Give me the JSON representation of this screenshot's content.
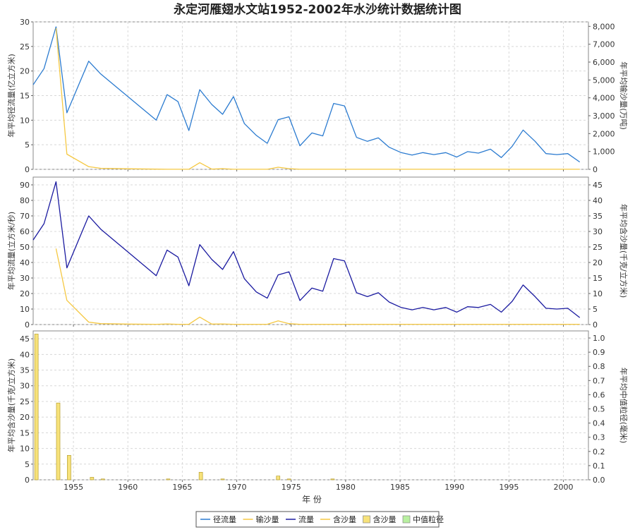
{
  "chart_data": {
    "type": "line",
    "title": "永定河雁翅水文站1952-2002年水沙统计数据统计图",
    "xlabel": "年 份",
    "xlim": [
      1951.3,
      2002.3
    ],
    "x_ticks": [
      1955,
      1960,
      1965,
      1970,
      1975,
      1980,
      1985,
      1990,
      1995,
      2000
    ],
    "colors": {
      "runoff": "#2b7bd0",
      "sediment_load": "#f5c842",
      "flow": "#1a1aa0",
      "concentration": "#f5c842",
      "bar_fill": "#f7e27a",
      "bar_stroke": "#b8a030",
      "median": "#b8f0a0"
    },
    "panels": [
      {
        "ylabel_left": "年平均径流量(亿立方米)",
        "ylabel_right": "年平均输沙量(万吨)",
        "ylim_left": [
          0,
          30
        ],
        "ylim_right": [
          0,
          8250
        ],
        "yticks_left": [
          "0",
          "5",
          "10",
          "15",
          "20",
          "25",
          "30"
        ],
        "yticks_right": [
          "0",
          "1,000",
          "2,000",
          "3,000",
          "4,000",
          "5,000",
          "6,000",
          "7,000",
          "8,000"
        ],
        "series": [
          {
            "name": "径流量",
            "axis": "left",
            "x": [
              1951.3,
              1952.3,
              1953.4,
              1954.4,
              1956.4,
              1957.5,
              1962.6,
              1963.6,
              1964.6,
              1965.6,
              1966.6,
              1967.7,
              1968.7,
              1969.7,
              1970.7,
              1971.8,
              1972.8,
              1973.8,
              1974.8,
              1975.8,
              1976.9,
              1977.9,
              1978.9,
              1979.9,
              1981.0,
              1982.0,
              1983.0,
              1984.0,
              1985.1,
              1986.1,
              1987.1,
              1988.1,
              1989.2,
              1990.2,
              1991.2,
              1992.2,
              1993.3,
              1994.3,
              1995.3,
              1996.3,
              1997.4,
              1998.4,
              1999.4,
              2000.4,
              2001.5
            ],
            "y": [
              17.2,
              20.5,
              29.0,
              11.5,
              22.0,
              19.4,
              10.0,
              15.2,
              13.8,
              7.9,
              16.2,
              13.2,
              11.2,
              14.8,
              9.3,
              6.9,
              5.3,
              10.1,
              10.7,
              4.8,
              7.4,
              6.8,
              13.4,
              12.9,
              6.5,
              5.7,
              6.4,
              4.5,
              3.4,
              2.9,
              3.4,
              3.0,
              3.4,
              2.5,
              3.6,
              3.3,
              4.1,
              2.4,
              4.7,
              8.0,
              5.7,
              3.2,
              3.0,
              3.2,
              1.5
            ]
          },
          {
            "name": "输沙量",
            "axis": "right",
            "x": [
              1953.4,
              1954.4,
              1956.4,
              1957.5,
              1960.0,
              1962.6,
              1963.6,
              1964.6,
              1965.6,
              1966.6,
              1967.7,
              1968.7,
              1969.7,
              1970.7,
              1971.8,
              1972.8,
              1973.8,
              1974.8,
              1975.8,
              1976.9,
              1980.0,
              1985.1,
              1990.2,
              1995.3,
              2001.5
            ],
            "y": [
              7900,
              850,
              150,
              60,
              30,
              10,
              5,
              5,
              5,
              370,
              10,
              40,
              5,
              5,
              5,
              5,
              120,
              40,
              5,
              5,
              5,
              5,
              5,
              5,
              5
            ]
          }
        ]
      },
      {
        "ylabel_left": "年平均流量(立方米/秒)",
        "ylabel_right": "年平均含沙量(千克/立方米)",
        "ylim_left": [
          0,
          95
        ],
        "ylim_right": [
          0,
          47.5
        ],
        "yticks_left": [
          "0",
          "10",
          "20",
          "30",
          "40",
          "50",
          "60",
          "70",
          "80",
          "90"
        ],
        "yticks_right": [
          "0",
          "5",
          "10",
          "15",
          "20",
          "25",
          "30",
          "35",
          "40",
          "45"
        ],
        "series": [
          {
            "name": "流量",
            "axis": "left",
            "x": [
              1951.3,
              1952.3,
              1953.4,
              1954.4,
              1956.4,
              1957.5,
              1962.6,
              1963.6,
              1964.6,
              1965.6,
              1966.6,
              1967.7,
              1968.7,
              1969.7,
              1970.7,
              1971.8,
              1972.8,
              1973.8,
              1974.8,
              1975.8,
              1976.9,
              1977.9,
              1978.9,
              1979.9,
              1981.0,
              1982.0,
              1983.0,
              1984.0,
              1985.1,
              1986.1,
              1987.1,
              1988.1,
              1989.2,
              1990.2,
              1991.2,
              1992.2,
              1993.3,
              1994.3,
              1995.3,
              1996.3,
              1997.4,
              1998.4,
              1999.4,
              2000.4,
              2001.5
            ],
            "y": [
              54.5,
              65.0,
              92.0,
              36.5,
              70.0,
              61.5,
              31.5,
              48.0,
              43.5,
              25.0,
              51.5,
              42.0,
              35.5,
              47.0,
              29.5,
              21.0,
              17.0,
              32.0,
              34.0,
              15.5,
              23.5,
              21.5,
              42.5,
              41.0,
              20.5,
              18.0,
              20.5,
              14.5,
              11.0,
              9.5,
              11.0,
              9.5,
              11.0,
              8.0,
              11.5,
              11.0,
              13.0,
              8.0,
              15.0,
              25.5,
              18.0,
              10.5,
              10.0,
              10.5,
              4.5
            ]
          },
          {
            "name": "含沙量",
            "axis": "right",
            "x": [
              1953.4,
              1954.4,
              1956.4,
              1957.5,
              1960.0,
              1962.6,
              1963.6,
              1964.6,
              1965.6,
              1966.6,
              1967.7,
              1968.7,
              1969.7,
              1970.7,
              1971.8,
              1972.8,
              1973.8,
              1974.8,
              1975.8,
              1976.9,
              1980.0,
              1985.1,
              1990.2,
              1995.3,
              2001.5
            ],
            "y": [
              24.5,
              7.8,
              0.8,
              0.3,
              0.15,
              0.1,
              0.2,
              0.1,
              0.1,
              2.4,
              0.15,
              0.2,
              0.1,
              0.1,
              0.1,
              0.1,
              1.2,
              0.3,
              0.1,
              0.1,
              0.1,
              0.1,
              0.1,
              0.1,
              0.1
            ]
          }
        ]
      },
      {
        "ylabel_left": "年平均含沙量(千克/立方米)",
        "ylabel_right": "年平均中值粒径(毫米)",
        "ylim_left": [
          0,
          47.5
        ],
        "ylim_right": [
          0,
          1.05
        ],
        "yticks_left": [
          "0",
          "5",
          "10",
          "15",
          "20",
          "25",
          "30",
          "35",
          "40",
          "45"
        ],
        "yticks_right": [
          "0.0",
          "0.1",
          "0.2",
          "0.3",
          "0.4",
          "0.5",
          "0.6",
          "0.7",
          "0.8",
          "0.9",
          "1.0"
        ],
        "bars": {
          "name": "含沙量",
          "x": [
            1951.6,
            1953.6,
            1954.6,
            1956.7,
            1957.7,
            1963.7,
            1966.7,
            1968.7,
            1973.8,
            1974.8,
            1978.8
          ],
          "y": [
            46.5,
            24.5,
            7.8,
            0.8,
            0.25,
            0.15,
            2.4,
            0.15,
            1.2,
            0.25,
            0.1
          ]
        }
      }
    ],
    "legend": {
      "placement": "bottom-center",
      "entries": [
        {
          "label": "径流量",
          "type": "line",
          "color": "#2b7bd0"
        },
        {
          "label": "输沙量",
          "type": "line",
          "color": "#f5c842"
        },
        {
          "label": "流量",
          "type": "line",
          "color": "#1a1aa0"
        },
        {
          "label": "含沙量",
          "type": "line",
          "color": "#f5c842"
        },
        {
          "label": "含沙量",
          "type": "box",
          "color": "#f7e27a"
        },
        {
          "label": "中值粒径",
          "type": "box",
          "color": "#b8f0a0"
        }
      ]
    }
  }
}
